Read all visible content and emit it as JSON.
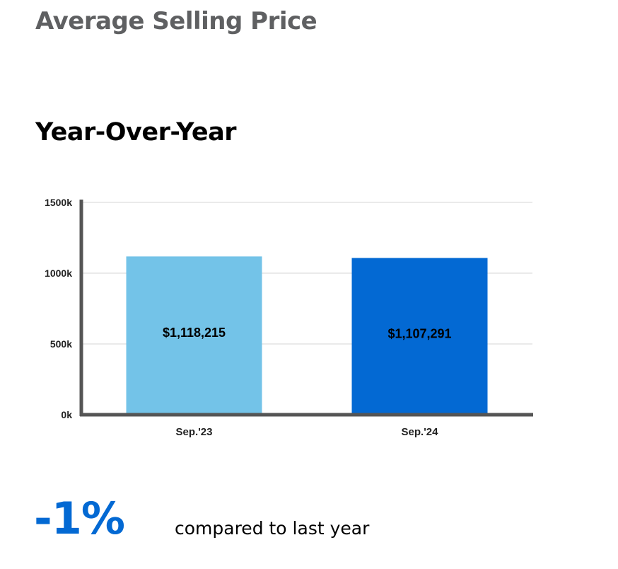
{
  "header": {
    "title": "Average Selling Price",
    "subtitle": "Year-Over-Year"
  },
  "chart_data": {
    "type": "bar",
    "categories": [
      "Sep.'23",
      "Sep.'24"
    ],
    "values": [
      1118215,
      1107291
    ],
    "data_labels": [
      "$1,118,215",
      "$1,107,291"
    ],
    "bar_colors": [
      "#73c3e8",
      "#0369d3"
    ],
    "ylim": [
      0,
      1500000
    ],
    "yticks": [
      0,
      500000,
      1000000,
      1500000
    ],
    "ytick_labels": [
      "0k",
      "500k",
      "1000k",
      "1500k"
    ],
    "grid": true,
    "legend": "none"
  },
  "summary": {
    "change": "-1%",
    "caption": "compared to last year",
    "accent_color": "#0369d3"
  }
}
